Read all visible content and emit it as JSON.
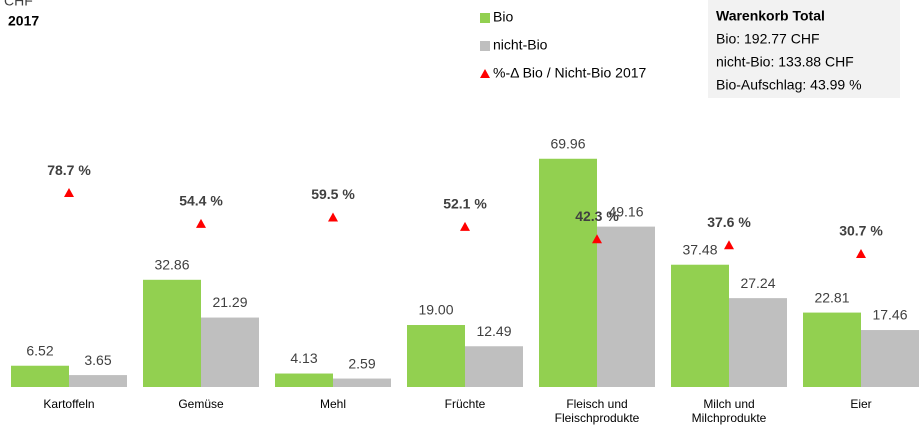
{
  "chart_data": {
    "type": "bar",
    "title": "CHF",
    "subtitle": "2017",
    "categories": [
      "Kartoffeln",
      "Gemüse",
      "Mehl",
      "Früchte",
      "Fleisch und\nFleischprodukte",
      "Milch und\nMilchprodukte",
      "Eier"
    ],
    "series": [
      {
        "name": "Bio",
        "color": "#92d050",
        "values": [
          6.52,
          32.86,
          4.13,
          19.0,
          69.96,
          37.48,
          22.81
        ],
        "value_labels": [
          "6.52",
          "32.86",
          "4.13",
          "19.00",
          "69.96",
          "37.48",
          "22.81"
        ]
      },
      {
        "name": "nicht-Bio",
        "color": "#bfbfbf",
        "values": [
          3.65,
          21.29,
          2.59,
          12.49,
          49.16,
          27.24,
          17.46
        ],
        "value_labels": [
          "3.65",
          "21.29",
          "2.59",
          "12.49",
          "49.16",
          "27.24",
          "17.46"
        ]
      },
      {
        "name": "%-Δ Bio / Nicht-Bio 2017",
        "color": "#ff0000",
        "axis": "y2",
        "values": [
          78.7,
          54.4,
          59.5,
          52.1,
          42.3,
          37.6,
          30.7
        ],
        "value_labels": [
          "78.7 %",
          "54.4 %",
          "59.5 %",
          "52.1 %",
          "42.3 %",
          "37.6 %",
          "30.7 %"
        ]
      }
    ],
    "ylim": [
      0,
      80
    ],
    "y2lim": [
      -74,
      131.5
    ],
    "info_box": {
      "title": "Warenkorb Total",
      "lines": [
        "Bio: 192.77 CHF",
        "nicht-Bio: 133.88 CHF",
        "Bio-Aufschlag: 43.99 %"
      ]
    }
  }
}
